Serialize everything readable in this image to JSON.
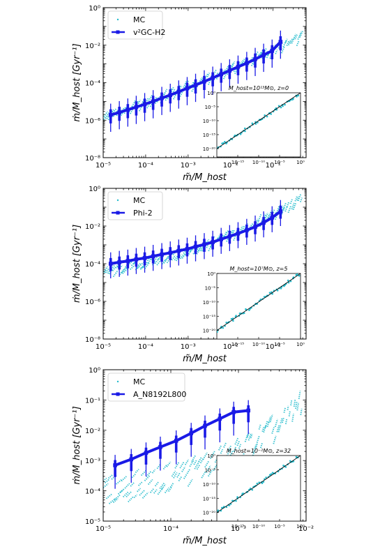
{
  "chart_data": [
    {
      "type": "scatter",
      "xlabel": "m̃/M_host",
      "ylabel": "ṁ/M_host   [Gyr⁻¹]",
      "xscale": "log",
      "yscale": "log",
      "xlim": [
        1e-05,
        0.6
      ],
      "ylim": [
        1e-08,
        1
      ],
      "x_tick_labels": [
        "10⁻⁵",
        "10⁻⁴",
        "10⁻³",
        "10⁻²",
        "10⁻¹"
      ],
      "y_tick_labels": [
        "10⁻⁸",
        "10⁻⁶",
        "10⁻⁴",
        "10⁻²",
        "10⁰"
      ],
      "legend_position": "top-left",
      "series": [
        {
          "name": "MC",
          "style": "scatter",
          "color": "#22bbcc",
          "x": [
            1e-05,
            3e-05,
            0.0001,
            0.0003,
            0.001,
            0.003,
            0.01,
            0.03,
            0.1,
            0.3
          ],
          "y": [
            1.5e-06,
            3e-06,
            8e-06,
            2e-05,
            6e-05,
            0.00016,
            0.0005,
            0.0015,
            0.005,
            0.016
          ]
        },
        {
          "name": "v²GC-H2",
          "style": "line-errorbar",
          "color": "#1a1ae6",
          "x": [
            1.5e-05,
            2.4e-05,
            3.8e-05,
            6e-05,
            9.5e-05,
            0.00015,
            0.00024,
            0.00038,
            0.0006,
            0.00095,
            0.0015,
            0.0024,
            0.0038,
            0.006,
            0.0095,
            0.015,
            0.024,
            0.038,
            0.06,
            0.095,
            0.15
          ],
          "y": [
            1.9e-06,
            2.6e-06,
            3.6e-06,
            5e-06,
            7e-06,
            1e-05,
            1.5e-05,
            2.2e-05,
            3.3e-05,
            5e-05,
            7.5e-05,
            0.000115,
            0.00018,
            0.00028,
            0.00044,
            0.0007,
            0.0011,
            0.0018,
            0.003,
            0.005,
            0.015
          ],
          "err_low_factor": 8,
          "err_high_factor": 4
        }
      ],
      "inset": {
        "title": "M_host=10¹³M⊙, z=0",
        "xlim": [
          1e-20,
          1
        ],
        "ylim": [
          1e-23,
          1
        ],
        "x_tick_labels": [
          "10⁻¹⁵",
          "10⁻¹⁰",
          "10⁻⁵",
          "10⁰"
        ],
        "y_tick_labels": [
          "10⁰",
          "10⁻⁵",
          "10⁻¹⁰",
          "10⁻¹⁵",
          "10⁻²⁰"
        ],
        "relation": "identity"
      }
    },
    {
      "type": "scatter",
      "xlabel": "m̃/M_host",
      "ylabel": "ṁ/M_host   [Gyr⁻¹]",
      "xscale": "log",
      "yscale": "log",
      "xlim": [
        1e-05,
        0.6
      ],
      "ylim": [
        1e-08,
        1
      ],
      "x_tick_labels": [
        "10⁻⁵",
        "10⁻⁴",
        "10⁻³",
        "10⁻²",
        "10⁻¹"
      ],
      "y_tick_labels": [
        "10⁻⁸",
        "10⁻⁶",
        "10⁻⁴",
        "10⁻²",
        "10⁰"
      ],
      "legend_position": "top-left",
      "series": [
        {
          "name": "MC",
          "style": "scatter",
          "color": "#22bbcc",
          "x": [
            1e-05,
            3e-05,
            0.0001,
            0.0003,
            0.001,
            0.003,
            0.01,
            0.03,
            0.1,
            0.3
          ],
          "y": [
            3e-05,
            6e-05,
            0.0001,
            0.0002,
            0.0004,
            0.001,
            0.003,
            0.01,
            0.04,
            0.15
          ]
        },
        {
          "name": "Phi-2",
          "style": "line-errorbar",
          "color": "#1a1ae6",
          "x": [
            1.5e-05,
            2.4e-05,
            3.8e-05,
            6e-05,
            9.5e-05,
            0.00015,
            0.00024,
            0.00038,
            0.0006,
            0.00095,
            0.0015,
            0.0024,
            0.0038,
            0.006,
            0.0095,
            0.015,
            0.024,
            0.038,
            0.06,
            0.095,
            0.15
          ],
          "y": [
            0.0001,
            0.00012,
            0.00014,
            0.00017,
            0.0002,
            0.00025,
            0.00031,
            0.00038,
            0.00048,
            0.0006,
            0.0008,
            0.00105,
            0.0014,
            0.002,
            0.0028,
            0.004,
            0.006,
            0.009,
            0.015,
            0.028,
            0.06
          ],
          "err_low_factor": 6,
          "err_high_factor": 4
        }
      ],
      "inset": {
        "title": "M_host=10⁷M⊙, z=5",
        "xlim": [
          1e-20,
          1
        ],
        "ylim": [
          1e-23,
          1
        ],
        "x_tick_labels": [
          "10⁻¹⁵",
          "10⁻¹⁰",
          "10⁻⁵",
          "10⁰"
        ],
        "y_tick_labels": [
          "10⁰",
          "10⁻⁵",
          "10⁻¹⁰",
          "10⁻¹⁵",
          "10⁻²⁰"
        ],
        "relation": "identity"
      }
    },
    {
      "type": "scatter",
      "xlabel": "m̃/M_host",
      "ylabel": "ṁ/M_host   [Gyr⁻¹]",
      "xscale": "log",
      "yscale": "log",
      "xlim": [
        1e-05,
        0.01
      ],
      "ylim": [
        1e-05,
        1
      ],
      "x_tick_labels": [
        "10⁻⁵",
        "10⁻⁴",
        "10⁻³",
        "10⁻²"
      ],
      "y_tick_labels": [
        "10⁻⁵",
        "10⁻⁴",
        "10⁻³",
        "10⁻²",
        "10⁻¹",
        "10⁰"
      ],
      "legend_position": "top-left",
      "series": [
        {
          "name": "MC",
          "style": "scatter",
          "color": "#22bbcc",
          "x": [
            1e-05,
            2e-05,
            5e-05,
            0.0001,
            0.0002,
            0.0005,
            0.001,
            0.002,
            0.005,
            0.01
          ],
          "y": [
            0.0001,
            0.00013,
            0.0002,
            0.0003,
            0.0005,
            0.001,
            0.002,
            0.005,
            0.02,
            0.15
          ]
        },
        {
          "name": "A_N8192L800",
          "style": "line-errorbar",
          "color": "#1a1ae6",
          "x": [
            1.5e-05,
            2.6e-05,
            4.3e-05,
            7e-05,
            0.00012,
            0.0002,
            0.00032,
            0.00053,
            0.00085,
            0.0014
          ],
          "y": [
            0.0007,
            0.0011,
            0.0018,
            0.0028,
            0.0045,
            0.008,
            0.014,
            0.024,
            0.04,
            0.045
          ],
          "err_low_factor": 6,
          "err_high_factor": 2.2
        }
      ],
      "inset": {
        "title": "M_host=10⁻²M⊙, z=32",
        "xlim": [
          1e-20,
          1
        ],
        "ylim": [
          1e-23,
          1
        ],
        "x_tick_labels": [
          "10⁻¹⁵",
          "10⁻¹⁰",
          "10⁻⁵",
          "10⁰"
        ],
        "y_tick_labels": [
          "10⁰",
          "10⁻⁵",
          "10⁻¹⁰",
          "10⁻¹⁵",
          "10⁻²⁰"
        ],
        "relation": "identity"
      }
    }
  ]
}
